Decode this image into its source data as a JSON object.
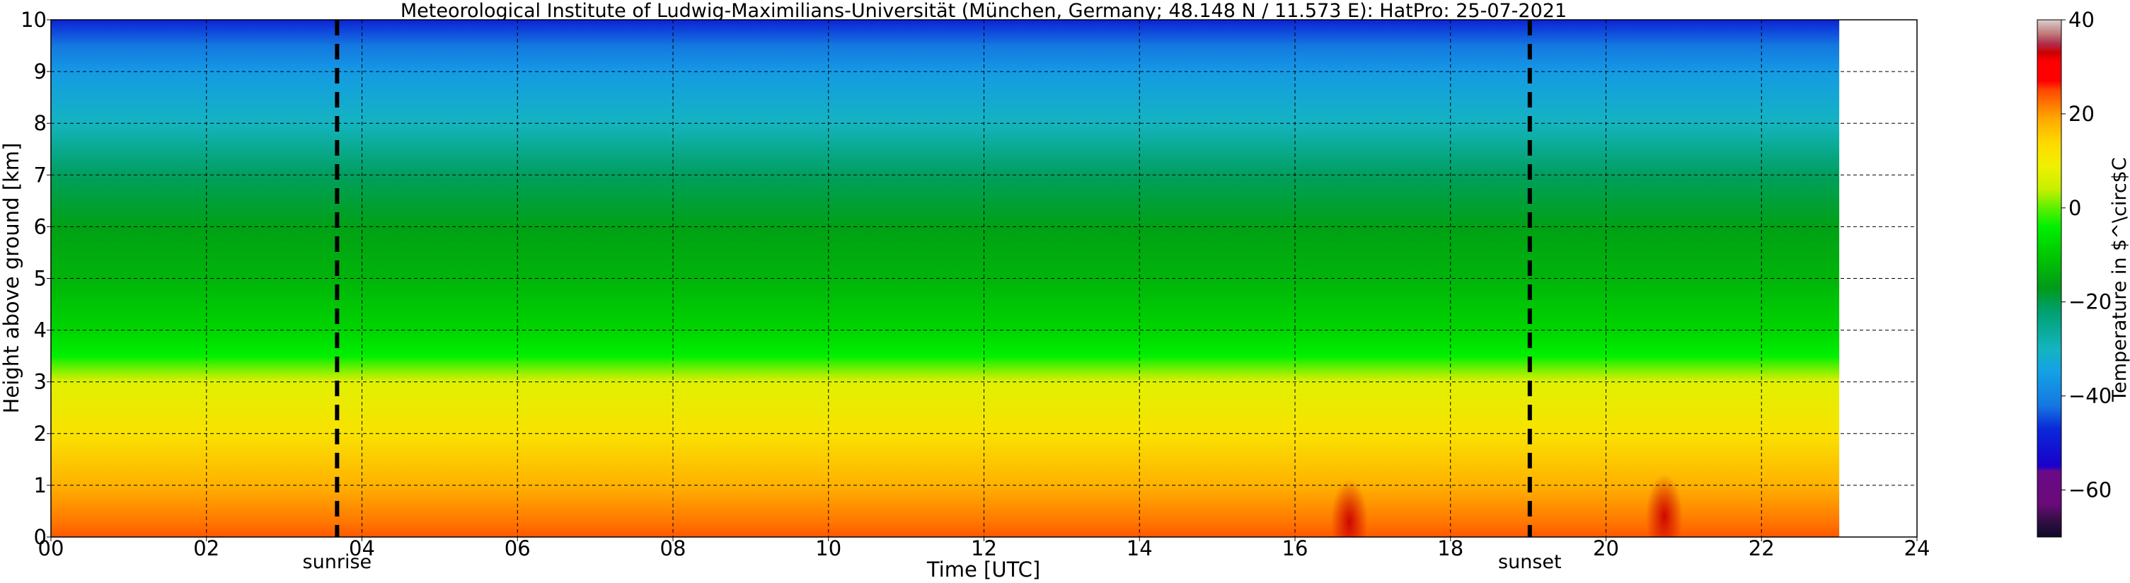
{
  "chart_data": {
    "type": "heatmap",
    "title": "Meteorological Institute of Ludwig-Maximilians-Universität (München, Germany; 48.148 N / 11.573 E):    HatPro: 25-07-2021",
    "xlabel": "Time [UTC]",
    "ylabel": "Height above ground [km]",
    "xlim": [
      0,
      24
    ],
    "ylim": [
      0,
      10
    ],
    "x_ticks": [
      "00",
      "02",
      "04",
      "06",
      "08",
      "10",
      "12",
      "14",
      "16",
      "18",
      "20",
      "22",
      "24"
    ],
    "y_ticks": [
      "0",
      "1",
      "2",
      "3",
      "4",
      "5",
      "6",
      "7",
      "8",
      "9",
      "10"
    ],
    "grid": true,
    "data_end_hour": 23,
    "colorbar": {
      "label": "Temperature in $^\\circ$C",
      "range": [
        -70,
        40
      ],
      "ticks": [
        "40",
        "20",
        "0",
        "−20",
        "−40",
        "−60"
      ],
      "stops": [
        {
          "v": -70,
          "c": "#0f0a2a"
        },
        {
          "v": -66,
          "c": "#3a0f4a"
        },
        {
          "v": -63,
          "c": "#6a0a7a"
        },
        {
          "v": -56,
          "c": "#6a0a88"
        },
        {
          "v": -55,
          "c": "#1a00cc"
        },
        {
          "v": -47,
          "c": "#0a28d8"
        },
        {
          "v": -42,
          "c": "#1478e0"
        },
        {
          "v": -35,
          "c": "#14a0e6"
        },
        {
          "v": -30,
          "c": "#14b4c0"
        },
        {
          "v": -22,
          "c": "#00a070"
        },
        {
          "v": -17,
          "c": "#009a18"
        },
        {
          "v": -10,
          "c": "#00c800"
        },
        {
          "v": -4,
          "c": "#00f000"
        },
        {
          "v": 0,
          "c": "#5cf000"
        },
        {
          "v": 4,
          "c": "#c8f000"
        },
        {
          "v": 9,
          "c": "#f0f000"
        },
        {
          "v": 14,
          "c": "#ffd800"
        },
        {
          "v": 19,
          "c": "#ffa800"
        },
        {
          "v": 22,
          "c": "#ff7800"
        },
        {
          "v": 25,
          "c": "#ff4800"
        },
        {
          "v": 27,
          "c": "#ff0000"
        },
        {
          "v": 31,
          "c": "#ff0000"
        },
        {
          "v": 33,
          "c": "#cc0000"
        },
        {
          "v": 35,
          "c": "#b03050"
        },
        {
          "v": 37,
          "c": "#c07878"
        },
        {
          "v": 40,
          "c": "#d8d0d0"
        }
      ]
    },
    "temperature_profile": {
      "heights_km": [
        0,
        0.3,
        1,
        2,
        3,
        3.5,
        4,
        5,
        6,
        7,
        8,
        9,
        9.5,
        10
      ],
      "temps_c": [
        24,
        22,
        18,
        12,
        7,
        -4,
        -8,
        -13,
        -16,
        -21,
        -30,
        -36,
        -42,
        -48
      ]
    },
    "events": [
      {
        "label": "sunrise",
        "hour": 3.68
      },
      {
        "label": "sunset",
        "hour": 19.02
      }
    ],
    "warm_anomalies": [
      {
        "hour": 16.7,
        "height_km": 0.3,
        "temp_c": 33
      },
      {
        "hour": 20.75,
        "height_km": 0.4,
        "temp_c": 33
      }
    ]
  }
}
